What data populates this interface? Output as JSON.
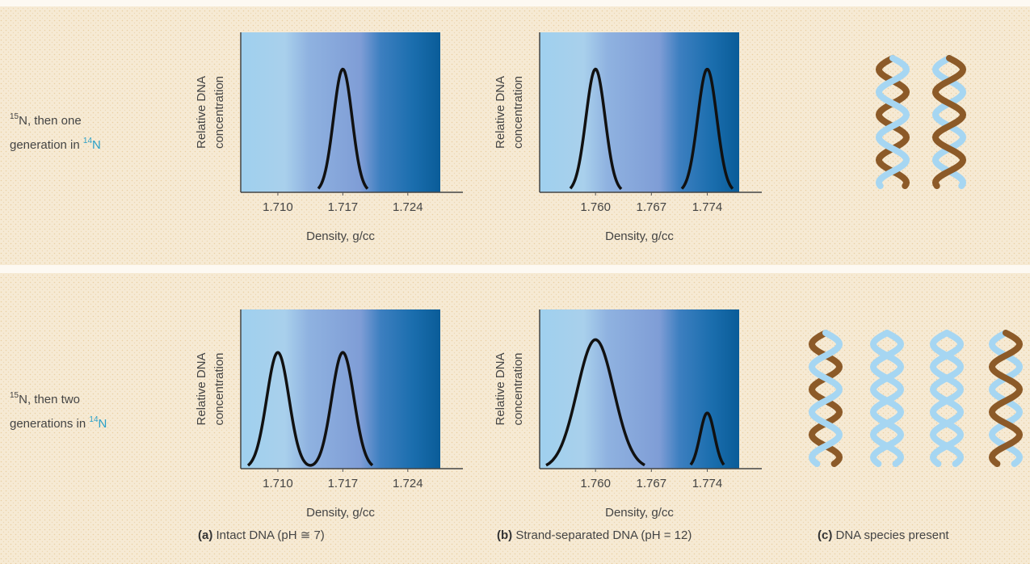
{
  "rows": [
    {
      "label": {
        "iso1": "15",
        "line1": "N, then one",
        "line2": "generation in ",
        "iso2": "14",
        "line2_end": "N"
      }
    },
    {
      "label": {
        "iso1": "15",
        "line1": "N, then two",
        "line2": "generations in ",
        "iso2": "14",
        "line2_end": "N"
      }
    }
  ],
  "chart_data": [
    {
      "type": "density",
      "ylabel": [
        "Relative DNA",
        "concentration"
      ],
      "xlabel": "Density, g/cc",
      "xlim": [
        1.706,
        1.7275
      ],
      "xticks": [
        {
          "value": 1.71,
          "label": "1.710"
        },
        1.717,
        1.724
      ],
      "ylim": [
        0,
        1
      ],
      "peaks": [
        {
          "x": 1.717,
          "height": 0.77,
          "width": 0.001
        }
      ]
    },
    {
      "type": "density",
      "ylabel": [
        "Relative DNA",
        "concentration"
      ],
      "xlabel": "Density, g/cc",
      "xlim": [
        1.753,
        1.778
      ],
      "xticks": [
        {
          "value": 1.76,
          "label": "1.760"
        },
        1.767,
        1.774
      ],
      "ylim": [
        0,
        1
      ],
      "peaks": [
        {
          "x": 1.76,
          "height": 0.77,
          "width": 0.0012
        },
        {
          "x": 1.774,
          "height": 0.77,
          "width": 0.0012
        }
      ]
    },
    {
      "type": "density",
      "ylabel": [
        "Relative DNA",
        "concentration"
      ],
      "xlabel": "Density, g/cc",
      "xlim": [
        1.706,
        1.7275
      ],
      "xticks": [
        {
          "value": 1.71,
          "label": "1.710"
        },
        1.717,
        1.724
      ],
      "ylim": [
        0,
        1
      ],
      "peaks": [
        {
          "x": 1.71,
          "height": 0.73,
          "width": 0.0012
        },
        {
          "x": 1.717,
          "height": 0.73,
          "width": 0.0012
        }
      ]
    },
    {
      "type": "density",
      "ylabel": [
        "Relative DNA",
        "concentration"
      ],
      "xlabel": "Density, g/cc",
      "xlim": [
        1.753,
        1.778
      ],
      "xticks": [
        {
          "value": 1.76,
          "label": "1.760"
        },
        1.767,
        1.774
      ],
      "ylim": [
        0,
        1
      ],
      "peaks": [
        {
          "x": 1.76,
          "height": 0.81,
          "width": 0.0023
        },
        {
          "x": 1.774,
          "height": 0.35,
          "width": 0.0009
        }
      ]
    }
  ],
  "captions": [
    {
      "tag": "(a)",
      "text": " Intact DNA (pH ≅ 7)"
    },
    {
      "tag": "(b)",
      "text": " Strand-separated DNA (pH = 12)"
    },
    {
      "tag": "(c)",
      "text": " DNA species present"
    }
  ]
}
